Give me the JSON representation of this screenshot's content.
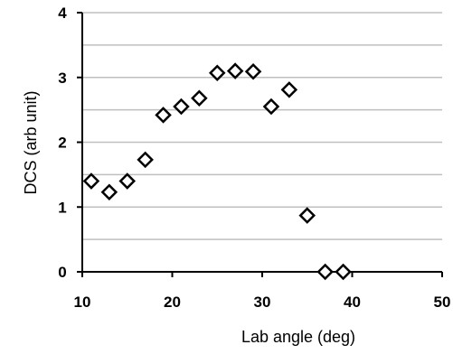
{
  "chart_data": {
    "type": "scatter",
    "title": "",
    "xlabel": "Lab angle (deg)",
    "ylabel": "DCS (arb unit)",
    "xlim": [
      10,
      50
    ],
    "ylim": [
      0,
      4
    ],
    "x_ticks": [
      10,
      20,
      30,
      40,
      50
    ],
    "y_ticks": [
      0,
      1,
      2,
      3,
      4
    ],
    "y_tick_labels": [
      "0",
      "1",
      "2",
      "3",
      "4"
    ],
    "x_tick_labels": [
      "10",
      "20",
      "30",
      "40",
      "50"
    ],
    "grid": "horizontal",
    "gridlines_y": [
      0.5,
      1,
      1.5,
      2,
      2.5,
      3,
      3.5,
      4
    ],
    "marker": "open-diamond",
    "legend": "none",
    "series": [
      {
        "x": [
          11,
          13,
          15,
          17,
          19,
          21,
          23,
          25,
          27,
          29,
          31,
          33,
          35,
          37,
          39
        ],
        "y": [
          1.4,
          1.23,
          1.4,
          1.73,
          2.42,
          2.55,
          2.68,
          3.07,
          3.1,
          3.09,
          2.55,
          2.81,
          0.87,
          0.0,
          0.0
        ]
      }
    ]
  },
  "colors": {
    "background": "#ffffff",
    "plot_background": "#ffffff",
    "axis": "#000000",
    "gridline": "#bfbfbf",
    "marker_stroke": "#000000",
    "marker_fill": "#ffffff"
  }
}
